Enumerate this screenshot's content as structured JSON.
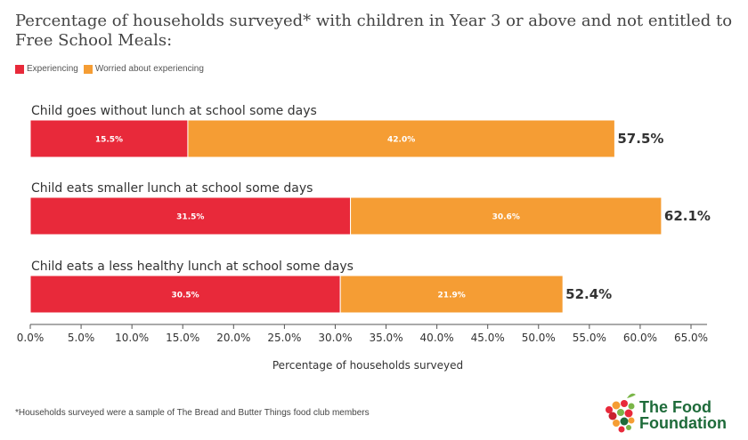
{
  "colors": {
    "experiencing": "#e8293a",
    "worried": "#f59d34",
    "axis": "#555555"
  },
  "legend": {
    "experiencing": "Experiencing",
    "worried": "Worried about experiencing"
  },
  "footnote": "*Households surveyed were a sample of The Bread and Butter Things food club members",
  "logo": {
    "line1": "The Food",
    "line2": "Foundation"
  },
  "chart_data": {
    "type": "bar",
    "orientation": "horizontal",
    "stacked": true,
    "title": "Percentage of households surveyed* with children in Year 3 or above and not entitled to Free School Meals:",
    "xlabel": "Percentage of households surveyed",
    "ylabel": "",
    "xlim": [
      0,
      65
    ],
    "xticks": [
      "0.0%",
      "5.0%",
      "10.0%",
      "15.0%",
      "20.0%",
      "25.0%",
      "30.0%",
      "35.0%",
      "40.0%",
      "45.0%",
      "50.0%",
      "55.0%",
      "60.0%",
      "65.0%"
    ],
    "grid": false,
    "legend_position": "top-left",
    "categories": [
      "Child goes without lunch at school some days",
      "Child eats smaller lunch at school some days",
      "Child eats a less healthy lunch at school some days"
    ],
    "series": [
      {
        "name": "Experiencing",
        "values": [
          15.5,
          31.5,
          30.5
        ],
        "labels": [
          "15.5%",
          "31.5%",
          "30.5%"
        ]
      },
      {
        "name": "Worried about experiencing",
        "values": [
          42.0,
          30.6,
          21.9
        ],
        "labels": [
          "42.0%",
          "30.6%",
          "21.9%"
        ]
      }
    ],
    "totals": [
      57.5,
      62.1,
      52.4
    ],
    "total_labels": [
      "57.5%",
      "62.1%",
      "52.4%"
    ]
  }
}
